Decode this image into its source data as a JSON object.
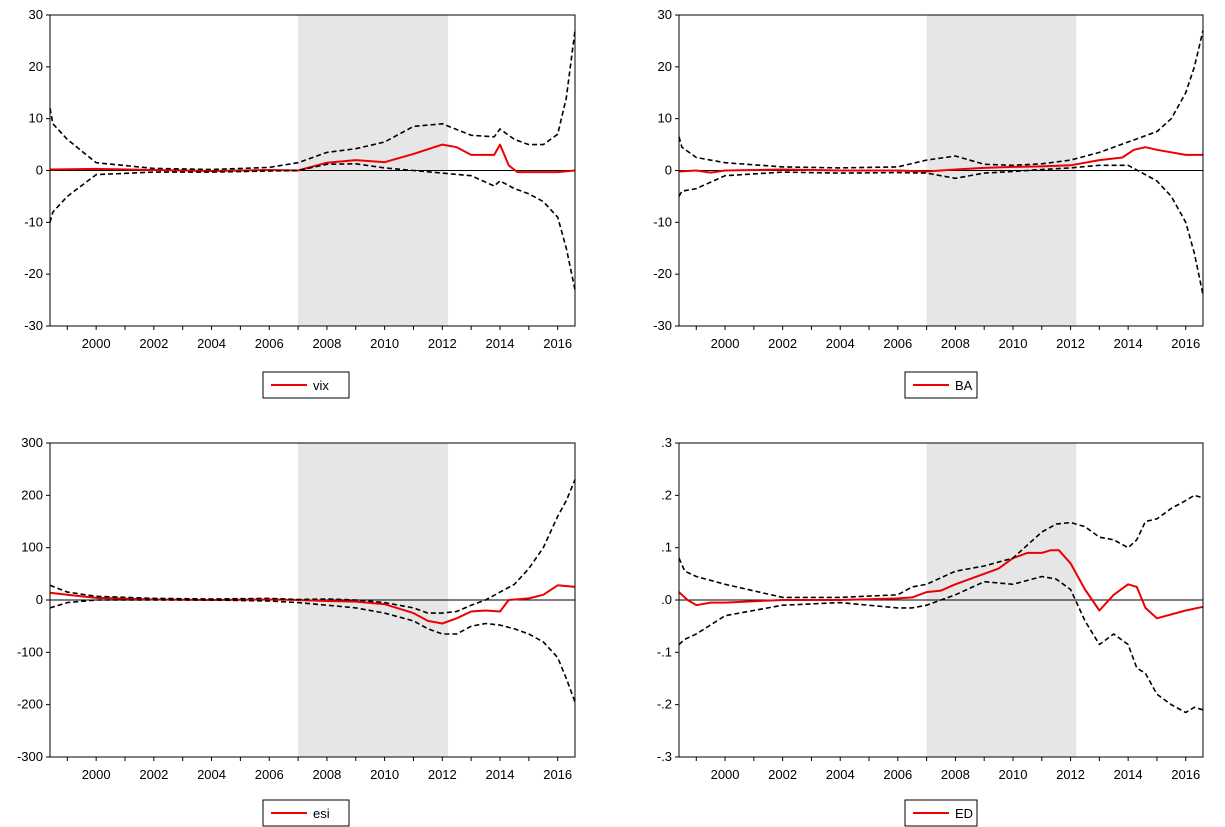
{
  "colors": {
    "estimate": "#ee0000",
    "bands": "#000000",
    "shade": "#e6e6e6",
    "axis": "#000000"
  },
  "chart_data": [
    {
      "type": "line",
      "title": "",
      "legend": [
        "vix"
      ],
      "legend_position": "bottom-center",
      "x_tick_labels": [
        "2000",
        "2002",
        "2004",
        "2006",
        "2008",
        "2010",
        "2012",
        "2014",
        "2016"
      ],
      "y_tick_labels": [
        "30",
        "20",
        "10",
        "0",
        "-10",
        "-20",
        "-30"
      ],
      "xlim": [
        1998.4,
        2016.6
      ],
      "ylim": [
        -30,
        30
      ],
      "shaded_region": [
        2007.0,
        2012.2
      ],
      "zero_line": true,
      "series": [
        {
          "name": "vix",
          "style": "solid-red",
          "x": [
            1998.4,
            2000,
            2002,
            2004,
            2006,
            2007,
            2008,
            2009,
            2010,
            2011,
            2012,
            2012.5,
            2013,
            2013.8,
            2014,
            2014.3,
            2014.6,
            2015,
            2016,
            2016.6
          ],
          "y": [
            0.2,
            0.3,
            0.1,
            -0.1,
            0.1,
            0,
            1.5,
            2,
            1.6,
            3.2,
            5,
            4.5,
            3,
            3,
            5,
            1,
            -0.3,
            -0.3,
            -0.3,
            0
          ]
        },
        {
          "style": "dashed-black",
          "x": [
            1998.4,
            1998.5,
            1999,
            2000,
            2002,
            2004,
            2006,
            2007,
            2008,
            2009,
            2010,
            2011,
            2012,
            2013,
            2013.8,
            2014,
            2014.5,
            2015,
            2015.5,
            2016,
            2016.3,
            2016.6
          ],
          "y": [
            12,
            9,
            6,
            1.5,
            0.4,
            0.2,
            0.6,
            1.5,
            3.5,
            4.2,
            5.5,
            8.5,
            9,
            6.8,
            6.5,
            8,
            6,
            5,
            5,
            7,
            14,
            27
          ]
        },
        {
          "style": "dashed-black",
          "x": [
            1998.4,
            1998.5,
            1999,
            2000,
            2002,
            2004,
            2006,
            2007,
            2008,
            2009,
            2010,
            2011,
            2012,
            2013,
            2013.8,
            2014,
            2014.5,
            2015,
            2015.5,
            2016,
            2016.3,
            2016.6
          ],
          "y": [
            -10,
            -8,
            -5,
            -0.8,
            -0.3,
            -0.3,
            -0.1,
            0,
            1.2,
            1.3,
            0.5,
            0,
            -0.5,
            -1,
            -3,
            -2,
            -3.5,
            -4.5,
            -6,
            -9,
            -15,
            -23
          ]
        }
      ]
    },
    {
      "type": "line",
      "title": "",
      "legend": [
        "BA"
      ],
      "legend_position": "bottom-center",
      "x_tick_labels": [
        "2000",
        "2002",
        "2004",
        "2006",
        "2008",
        "2010",
        "2012",
        "2014",
        "2016"
      ],
      "y_tick_labels": [
        "30",
        "20",
        "10",
        "0",
        "-10",
        "-20",
        "-30"
      ],
      "xlim": [
        1998.4,
        2016.6
      ],
      "ylim": [
        -30,
        30
      ],
      "shaded_region": [
        2007.0,
        2012.2
      ],
      "zero_line": true,
      "series": [
        {
          "name": "BA",
          "style": "solid-red",
          "x": [
            1998.4,
            1999,
            1999.5,
            2000,
            2002,
            2004,
            2006,
            2007,
            2008,
            2009,
            2010,
            2011,
            2012,
            2013,
            2013.8,
            2014.2,
            2014.6,
            2015,
            2016,
            2016.6
          ],
          "y": [
            -0.2,
            0,
            -0.4,
            0,
            0.2,
            0,
            0,
            -0.2,
            0.2,
            0.5,
            0.7,
            0.8,
            1,
            2,
            2.5,
            4,
            4.5,
            4,
            3,
            3
          ]
        },
        {
          "style": "dashed-black",
          "x": [
            1998.4,
            1998.5,
            1999,
            2000,
            2002,
            2004,
            2006,
            2007,
            2008,
            2009,
            2010,
            2011,
            2012,
            2013,
            2014,
            2015,
            2015.5,
            2016,
            2016.3,
            2016.6
          ],
          "y": [
            6.5,
            4.5,
            2.5,
            1.5,
            0.7,
            0.5,
            0.7,
            2,
            2.8,
            1.2,
            1,
            1.3,
            2,
            3.5,
            5.5,
            7.5,
            10,
            15,
            20,
            27
          ]
        },
        {
          "style": "dashed-black",
          "x": [
            1998.4,
            1998.5,
            1999,
            2000,
            2002,
            2004,
            2006,
            2007,
            2008,
            2009,
            2010,
            2011,
            2012,
            2013,
            2014,
            2015,
            2015.5,
            2016,
            2016.3,
            2016.6
          ],
          "y": [
            -5,
            -4,
            -3.5,
            -1,
            -0.3,
            -0.5,
            -0.4,
            -0.5,
            -1.5,
            -0.5,
            -0.2,
            0.2,
            0.5,
            1,
            1,
            -2,
            -5,
            -10,
            -16,
            -24
          ]
        }
      ]
    },
    {
      "type": "line",
      "title": "",
      "legend": [
        "esi"
      ],
      "legend_position": "bottom-center",
      "x_tick_labels": [
        "2000",
        "2002",
        "2004",
        "2006",
        "2008",
        "2010",
        "2012",
        "2014",
        "2016"
      ],
      "y_tick_labels": [
        "300",
        "200",
        "100",
        "0",
        "-100",
        "-200",
        "-300"
      ],
      "xlim": [
        1998.4,
        2016.6
      ],
      "ylim": [
        -300,
        300
      ],
      "shaded_region": [
        2007.0,
        2012.2
      ],
      "zero_line": true,
      "series": [
        {
          "name": "esi",
          "style": "solid-red",
          "x": [
            1998.4,
            1999,
            2000,
            2002,
            2004,
            2006,
            2007,
            2008,
            2009,
            2010,
            2011,
            2011.5,
            2012,
            2012.5,
            2013,
            2013.5,
            2014,
            2014.3,
            2015,
            2015.5,
            2016,
            2016.6
          ],
          "y": [
            14,
            10,
            4,
            1,
            0,
            1,
            0,
            -2,
            -3,
            -8,
            -25,
            -40,
            -45,
            -35,
            -22,
            -20,
            -22,
            0,
            3,
            10,
            28,
            25
          ]
        },
        {
          "style": "dashed-black",
          "x": [
            1998.4,
            1999,
            2000,
            2002,
            2004,
            2006,
            2007,
            2008,
            2009,
            2010,
            2011,
            2011.5,
            2012,
            2012.5,
            2013,
            2013.5,
            2014,
            2014.5,
            2015,
            2015.5,
            2016,
            2016.3,
            2016.6
          ],
          "y": [
            28,
            15,
            7,
            3,
            2,
            3,
            1,
            2,
            0,
            -5,
            -15,
            -25,
            -25,
            -22,
            -10,
            0,
            15,
            30,
            60,
            100,
            160,
            190,
            230
          ]
        },
        {
          "style": "dashed-black",
          "x": [
            1998.4,
            1999,
            2000,
            2002,
            2004,
            2006,
            2007,
            2008,
            2009,
            2010,
            2011,
            2011.5,
            2012,
            2012.5,
            2013,
            2013.5,
            2014,
            2014.5,
            2015,
            2015.5,
            2016,
            2016.3,
            2016.6
          ],
          "y": [
            -15,
            -5,
            0,
            0,
            0,
            -2,
            -5,
            -10,
            -15,
            -25,
            -40,
            -55,
            -65,
            -65,
            -50,
            -45,
            -48,
            -55,
            -65,
            -80,
            -110,
            -150,
            -195
          ]
        }
      ]
    },
    {
      "type": "line",
      "title": "",
      "legend": [
        "ED"
      ],
      "legend_position": "bottom-center",
      "x_tick_labels": [
        "2000",
        "2002",
        "2004",
        "2006",
        "2008",
        "2010",
        "2012",
        "2014",
        "2016"
      ],
      "y_tick_labels": [
        ".3",
        ".2",
        ".1",
        ".0",
        "-.1",
        "-.2",
        "-.3"
      ],
      "xlim": [
        1998.4,
        2016.6
      ],
      "ylim": [
        -0.3,
        0.3
      ],
      "shaded_region": [
        2007.0,
        2012.2
      ],
      "zero_line": true,
      "series": [
        {
          "name": "ED",
          "style": "solid-red",
          "x": [
            1998.4,
            1998.7,
            1999,
            1999.5,
            2000,
            2002,
            2004,
            2006,
            2006.5,
            2007,
            2007.5,
            2008,
            2009,
            2009.5,
            2010,
            2010.5,
            2011,
            2011.3,
            2011.6,
            2012,
            2012.5,
            2013,
            2013.5,
            2014,
            2014.3,
            2014.6,
            2015,
            2016,
            2016.6
          ],
          "y": [
            0.015,
            0,
            -0.01,
            -0.005,
            -0.005,
            0,
            0,
            0.003,
            0.005,
            0.015,
            0.018,
            0.03,
            0.05,
            0.06,
            0.08,
            0.09,
            0.09,
            0.095,
            0.095,
            0.07,
            0.02,
            -0.02,
            0.01,
            0.03,
            0.025,
            -0.015,
            -0.035,
            -0.02,
            -0.013
          ]
        },
        {
          "style": "dashed-black",
          "x": [
            1998.4,
            1998.6,
            1999,
            2000,
            2002,
            2004,
            2006,
            2006.5,
            2007,
            2008,
            2009,
            2010,
            2011,
            2011.5,
            2012,
            2012.5,
            2013,
            2013.5,
            2014,
            2014.3,
            2014.6,
            2015,
            2015.5,
            2016,
            2016.3,
            2016.6
          ],
          "y": [
            0.08,
            0.055,
            0.045,
            0.03,
            0.005,
            0.005,
            0.01,
            0.025,
            0.03,
            0.055,
            0.065,
            0.08,
            0.13,
            0.145,
            0.148,
            0.14,
            0.12,
            0.115,
            0.1,
            0.115,
            0.15,
            0.155,
            0.175,
            0.19,
            0.2,
            0.195
          ]
        },
        {
          "style": "dashed-black",
          "x": [
            1998.4,
            1998.6,
            1999,
            2000,
            2002,
            2004,
            2006,
            2006.5,
            2007,
            2008,
            2009,
            2010,
            2011,
            2011.5,
            2012,
            2012.5,
            2013,
            2013.5,
            2014,
            2014.3,
            2014.6,
            2015,
            2015.5,
            2016,
            2016.3,
            2016.6
          ],
          "y": [
            -0.085,
            -0.075,
            -0.065,
            -0.03,
            -0.01,
            -0.005,
            -0.015,
            -0.015,
            -0.01,
            0.01,
            0.035,
            0.03,
            0.045,
            0.04,
            0.02,
            -0.04,
            -0.085,
            -0.065,
            -0.085,
            -0.13,
            -0.14,
            -0.18,
            -0.2,
            -0.215,
            -0.205,
            -0.21
          ]
        }
      ]
    }
  ]
}
